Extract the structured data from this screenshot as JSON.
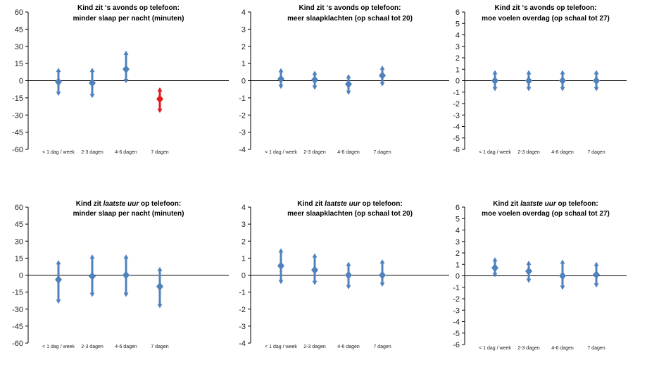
{
  "colors": {
    "series": "#4f81bd",
    "highlight": "#e31a1c",
    "axis": "#000000"
  },
  "chart_data": [
    {
      "type": "errorbar",
      "title_lines": [
        [
          {
            "t": "Kind zit ‘s avonds op telefoon:"
          }
        ],
        [
          {
            "t": "minder slaap per nacht (minuten)"
          }
        ]
      ],
      "categories": [
        "< 1 dag / week",
        "2-3 dagen",
        "4-6 dagen",
        "7 dagen"
      ],
      "ylim": [
        -60,
        60
      ],
      "ystep": 15,
      "yticks": [
        "60",
        "45",
        "30",
        "15",
        "0",
        "-15",
        "-30",
        "-45",
        "-60"
      ],
      "values": [
        -1,
        -2,
        10,
        -16
      ],
      "lower": [
        -12,
        -14,
        -1,
        -27
      ],
      "upper": [
        10,
        10,
        25,
        -7
      ],
      "highlight": [
        false,
        false,
        false,
        true
      ]
    },
    {
      "type": "errorbar",
      "title_lines": [
        [
          {
            "t": "Kind zit ‘s avonds op telefoon:"
          }
        ],
        [
          {
            "t": "meer slaapklachten (op schaal tot 20)"
          }
        ]
      ],
      "categories": [
        "< 1 dag / week",
        "2-3 dagen",
        "4-6 dagen",
        "7 dagen"
      ],
      "ylim": [
        -4,
        4
      ],
      "ystep": 1,
      "yticks": [
        "4",
        "3",
        "2",
        "1",
        "0",
        "-1",
        "-2",
        "-3",
        "-4"
      ],
      "values": [
        0.1,
        0.05,
        -0.2,
        0.3
      ],
      "lower": [
        -0.4,
        -0.45,
        -0.75,
        -0.25
      ],
      "upper": [
        0.65,
        0.5,
        0.3,
        0.8
      ],
      "highlight": [
        false,
        false,
        false,
        false
      ]
    },
    {
      "type": "errorbar",
      "title_lines": [
        [
          {
            "t": "Kind zit ‘s avonds op telefoon:"
          }
        ],
        [
          {
            "t": "moe voelen overdag (op schaal tot 27)"
          }
        ]
      ],
      "categories": [
        "< 1 dag / week",
        "2-3 dagen",
        "4-6 dagen",
        "7 dagen"
      ],
      "ylim": [
        -6,
        6
      ],
      "ystep": 1,
      "yticks": [
        "6",
        "5",
        "4",
        "3",
        "2",
        "1",
        "0",
        "-1",
        "-2",
        "-3",
        "-4",
        "-5",
        "-6"
      ],
      "values": [
        0,
        0,
        0,
        0
      ],
      "lower": [
        -0.8,
        -0.8,
        -0.8,
        -0.8
      ],
      "upper": [
        0.8,
        0.8,
        0.8,
        0.8
      ],
      "highlight": [
        false,
        false,
        false,
        false
      ]
    },
    {
      "type": "errorbar",
      "title_lines": [
        [
          {
            "t": "Kind zit "
          },
          {
            "t": "laatste uur",
            "i": true
          },
          {
            "t": " op telefoon:"
          }
        ],
        [
          {
            "t": "minder slaap per nacht (minuten)"
          }
        ]
      ],
      "categories": [
        "< 1 dag / week",
        "2-3 dagen",
        "4-6 dagen",
        "7 dagen"
      ],
      "ylim": [
        -60,
        60
      ],
      "ystep": 15,
      "yticks": [
        "60",
        "45",
        "30",
        "15",
        "0",
        "-15",
        "-30",
        "-45",
        "-60"
      ],
      "values": [
        -4,
        -1,
        0,
        -10
      ],
      "lower": [
        -24,
        -18,
        -18,
        -28
      ],
      "upper": [
        12,
        17,
        17,
        6
      ],
      "highlight": [
        false,
        false,
        false,
        false
      ]
    },
    {
      "type": "errorbar",
      "title_lines": [
        [
          {
            "t": "Kind zit "
          },
          {
            "t": "laatste uur",
            "i": true
          },
          {
            "t": " op telefoon:"
          }
        ],
        [
          {
            "t": "meer slaapklachten (op schaal tot 20)"
          }
        ]
      ],
      "categories": [
        "< 1 dag / week",
        "2-3 dagen",
        "4-6 dagen",
        "7 dagen"
      ],
      "ylim": [
        -4,
        4
      ],
      "ystep": 1,
      "yticks": [
        "4",
        "3",
        "2",
        "1",
        "0",
        "-1",
        "-2",
        "-3",
        "-4"
      ],
      "values": [
        0.55,
        0.3,
        0,
        0
      ],
      "lower": [
        -0.45,
        -0.5,
        -0.75,
        -0.6
      ],
      "upper": [
        1.5,
        1.2,
        0.7,
        0.85
      ],
      "highlight": [
        false,
        false,
        false,
        false
      ]
    },
    {
      "type": "errorbar",
      "title_lines": [
        [
          {
            "t": "Kind zit "
          },
          {
            "t": "laatste uur",
            "i": true
          },
          {
            "t": " op telefoon:"
          }
        ],
        [
          {
            "t": "moe voelen overdag (op schaal tot 27)"
          }
        ]
      ],
      "categories": [
        "< 1 dag / week",
        "2-3 dagen",
        "4-6 dagen",
        "7 dagen"
      ],
      "ylim": [
        -6,
        6
      ],
      "ystep": 1,
      "yticks": [
        "6",
        "5",
        "4",
        "3",
        "2",
        "1",
        "0",
        "-1",
        "-2",
        "-3",
        "-4",
        "-5",
        "-6"
      ],
      "values": [
        0.7,
        0.4,
        0,
        0.1
      ],
      "lower": [
        0,
        -0.5,
        -1.1,
        -0.9
      ],
      "upper": [
        1.5,
        1.2,
        1.3,
        1.1
      ],
      "highlight": [
        false,
        false,
        false,
        false
      ]
    }
  ]
}
